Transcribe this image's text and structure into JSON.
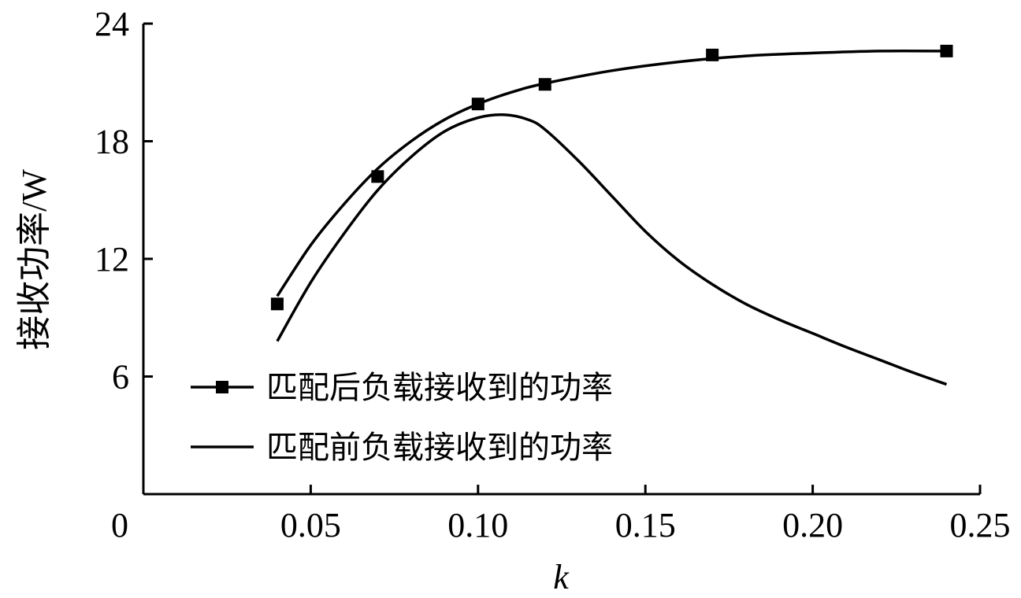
{
  "chart_data": {
    "type": "line",
    "xlabel": "k",
    "ylabel": "接收功率/W",
    "xlim": [
      0,
      0.25
    ],
    "ylim": [
      0,
      24
    ],
    "x_ticks": [
      0.05,
      0.1,
      0.15,
      0.2,
      0.25
    ],
    "x_tick_labels": [
      "0.05",
      "0.10",
      "0.15",
      "0.20",
      "0.25"
    ],
    "y_ticks": [
      6,
      12,
      18,
      24
    ],
    "y_tick_labels": [
      "6",
      "12",
      "18",
      "24"
    ],
    "origin_label": "0",
    "grid": false,
    "legend_position": "bottom-left",
    "series": [
      {
        "name": "匹配后负载接收到的功率",
        "marker": "square",
        "color": "#000000",
        "points": [
          {
            "x": 0.04,
            "y": 9.7
          },
          {
            "x": 0.07,
            "y": 16.2
          },
          {
            "x": 0.1,
            "y": 19.9
          },
          {
            "x": 0.12,
            "y": 20.9
          },
          {
            "x": 0.17,
            "y": 22.4
          },
          {
            "x": 0.24,
            "y": 22.6
          }
        ],
        "curve": [
          {
            "x": 0.04,
            "y": 10.1
          },
          {
            "x": 0.05,
            "y": 12.7
          },
          {
            "x": 0.06,
            "y": 14.8
          },
          {
            "x": 0.07,
            "y": 16.6
          },
          {
            "x": 0.08,
            "y": 18.0
          },
          {
            "x": 0.09,
            "y": 19.1
          },
          {
            "x": 0.1,
            "y": 19.9
          },
          {
            "x": 0.11,
            "y": 20.5
          },
          {
            "x": 0.12,
            "y": 20.95
          },
          {
            "x": 0.14,
            "y": 21.6
          },
          {
            "x": 0.16,
            "y": 22.05
          },
          {
            "x": 0.18,
            "y": 22.35
          },
          {
            "x": 0.2,
            "y": 22.5
          },
          {
            "x": 0.22,
            "y": 22.6
          },
          {
            "x": 0.24,
            "y": 22.6
          }
        ]
      },
      {
        "name": "匹配前负载接收到的功率",
        "marker": "none",
        "color": "#000000",
        "curve": [
          {
            "x": 0.04,
            "y": 7.8
          },
          {
            "x": 0.05,
            "y": 10.8
          },
          {
            "x": 0.06,
            "y": 13.3
          },
          {
            "x": 0.07,
            "y": 15.5
          },
          {
            "x": 0.08,
            "y": 17.2
          },
          {
            "x": 0.09,
            "y": 18.5
          },
          {
            "x": 0.1,
            "y": 19.2
          },
          {
            "x": 0.108,
            "y": 19.35
          },
          {
            "x": 0.115,
            "y": 19.1
          },
          {
            "x": 0.12,
            "y": 18.6
          },
          {
            "x": 0.13,
            "y": 17.0
          },
          {
            "x": 0.14,
            "y": 15.2
          },
          {
            "x": 0.15,
            "y": 13.4
          },
          {
            "x": 0.16,
            "y": 11.9
          },
          {
            "x": 0.17,
            "y": 10.7
          },
          {
            "x": 0.18,
            "y": 9.7
          },
          {
            "x": 0.19,
            "y": 8.9
          },
          {
            "x": 0.2,
            "y": 8.2
          },
          {
            "x": 0.21,
            "y": 7.5
          },
          {
            "x": 0.22,
            "y": 6.85
          },
          {
            "x": 0.23,
            "y": 6.2
          },
          {
            "x": 0.24,
            "y": 5.6
          }
        ]
      }
    ]
  }
}
